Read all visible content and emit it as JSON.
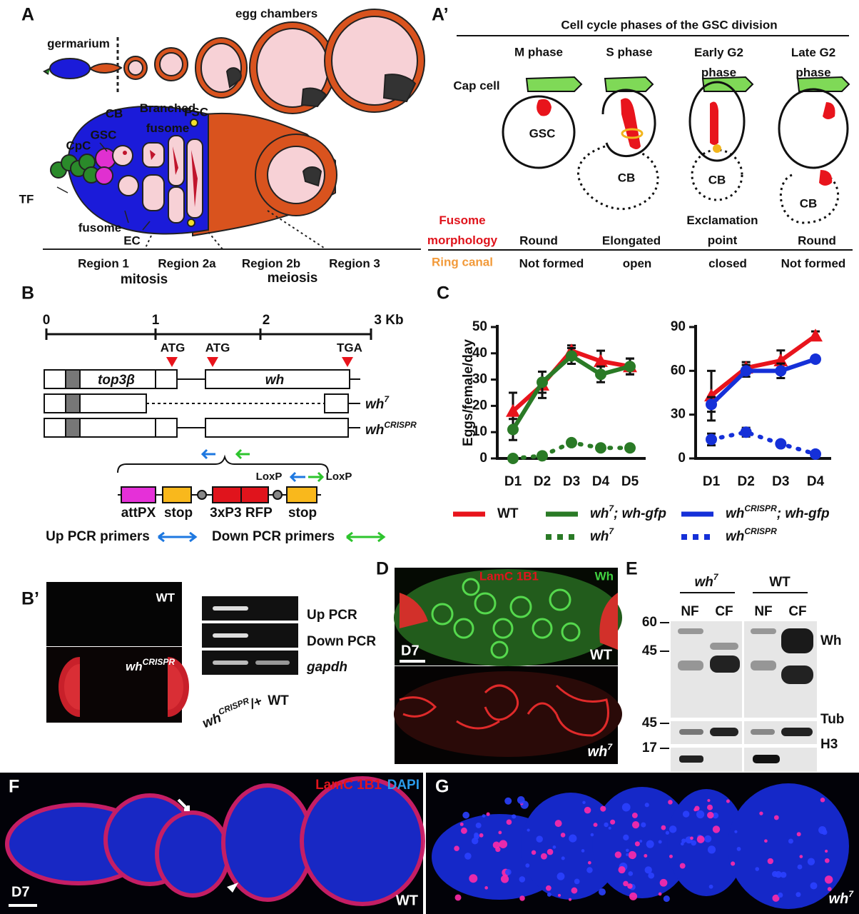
{
  "panel_a": {
    "label": "A",
    "egg_chambers": "egg chambers",
    "germarium": "germarium",
    "cb": "CB",
    "branched_fusome": "Branched fusome",
    "fsc": "FSC",
    "cpc": "CpC",
    "gsc": "GSC",
    "tf": "TF",
    "fusome": "fusome",
    "ec": "EC",
    "regions": [
      "Region 1",
      "Region 2a",
      "Region 2b",
      "Region 3"
    ],
    "mitosis": "mitosis",
    "meiosis": "meiosis"
  },
  "panel_a_prime": {
    "label": "A’",
    "title": "Cell cycle phases of the GSC division",
    "phases": [
      "M phase",
      "S phase",
      "Early G2 phase",
      "Late G2 phase"
    ],
    "cap_cell": "Cap cell",
    "gsc": "GSC",
    "cb": [
      "CB",
      "CB",
      "CB"
    ],
    "fusome_row": "Fusome morphology",
    "fusome_morphology": [
      "Round",
      "Elongated",
      "Exclamation point",
      "Round"
    ],
    "ring_row": "Ring canal",
    "ring_canal": [
      "Not formed",
      "open",
      "closed",
      "Not formed"
    ]
  },
  "panel_b": {
    "label": "B",
    "scale": [
      0,
      1,
      2,
      "3 Kb"
    ],
    "codons": [
      "ATG",
      "ATG",
      "TGA"
    ],
    "genes": [
      "top3β",
      "wh"
    ],
    "alleles": [
      "wh7",
      "whCRISPR"
    ],
    "loxp": [
      "LoxP",
      "LoxP"
    ],
    "cassette": [
      "attPX",
      "stop",
      "3xP3 RFP",
      "stop"
    ],
    "up_primers": "Up PCR primers",
    "down_primers": "Down PCR primers"
  },
  "panel_b_prime": {
    "label": "B’",
    "eyes": [
      "WT",
      "whCRISPR"
    ],
    "pcr": [
      "Up PCR",
      "Down PCR",
      "gapdh"
    ],
    "lanes": [
      "whCRISPR/+",
      "WT"
    ]
  },
  "panel_c": {
    "label": "C"
  },
  "chart_data": [
    {
      "type": "line",
      "ylabel": "Eggs/female/day",
      "categories": [
        "D1",
        "D2",
        "D3",
        "D4",
        "D5"
      ],
      "ylim": [
        0,
        50
      ],
      "yticks": [
        0,
        10,
        20,
        30,
        40,
        50
      ],
      "series": [
        {
          "name": "WT",
          "color": "#e8141c",
          "style": "solid",
          "marker": "triangle",
          "values": [
            18,
            28,
            41,
            37,
            35
          ],
          "errors": [
            7,
            5,
            2,
            4,
            3
          ]
        },
        {
          "name": "wh7; wh-gfp",
          "color": "#2a7a26",
          "style": "solid",
          "marker": "circle",
          "values": [
            11,
            29,
            39,
            32,
            35
          ],
          "errors": [
            4,
            4,
            3,
            3,
            3
          ]
        },
        {
          "name": "wh7",
          "color": "#2a7a26",
          "style": "dotted",
          "marker": "circle",
          "values": [
            0,
            1,
            6,
            4,
            4
          ],
          "errors": [
            0,
            0,
            1,
            1,
            1
          ]
        }
      ]
    },
    {
      "type": "line",
      "categories": [
        "D1",
        "D2",
        "D3",
        "D4"
      ],
      "ylim": [
        0,
        90
      ],
      "yticks": [
        0,
        30,
        60,
        90
      ],
      "series": [
        {
          "color": "#e8141c",
          "style": "solid",
          "marker": "triangle",
          "values": [
            43,
            62,
            67,
            84
          ],
          "errors": [
            17,
            4,
            7,
            3
          ]
        },
        {
          "name": "whCRISPR; wh-gfp",
          "color": "#1530d8",
          "style": "solid",
          "marker": "circle",
          "values": [
            37,
            60,
            60,
            68
          ],
          "errors": [
            5,
            4,
            5,
            2
          ]
        },
        {
          "name": "whCRISPR",
          "color": "#1530d8",
          "style": "dotted",
          "marker": "circle",
          "values": [
            13,
            18,
            10,
            3
          ],
          "errors": [
            4,
            3,
            2,
            1
          ]
        }
      ]
    }
  ],
  "panel_d": {
    "label": "D",
    "stain": "LamC 1B1",
    "stain2": "Wh",
    "day": "D7",
    "genotypes": [
      "WT",
      "wh7"
    ]
  },
  "panel_e": {
    "label": "E",
    "genotypes": [
      "wh7",
      "WT"
    ],
    "fractions": [
      "NF",
      "CF",
      "NF",
      "CF"
    ],
    "markers": [
      60,
      45,
      45,
      17
    ],
    "proteins": [
      "Wh",
      "Tub",
      "H3"
    ]
  },
  "panel_f": {
    "label": "F",
    "stain": "LamC 1B1",
    "stain2": "DAPI",
    "day": "D7",
    "genotype": "WT"
  },
  "panel_g": {
    "label": "G",
    "genotype": "wh7"
  }
}
